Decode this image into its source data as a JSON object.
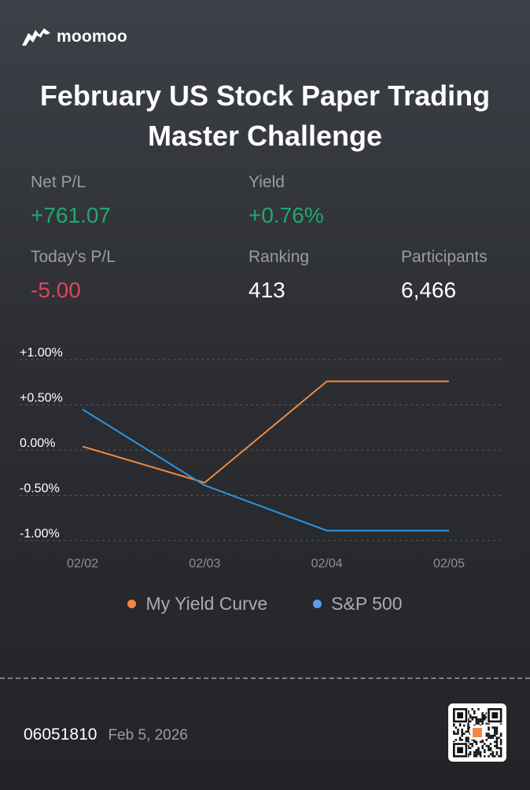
{
  "brand": {
    "name": "moomoo"
  },
  "title": {
    "line1": "February US Stock Paper Trading",
    "line2": "Master Challenge"
  },
  "stats": {
    "net_pl": {
      "label": "Net P/L",
      "value": "+761.07"
    },
    "yield": {
      "label": "Yield",
      "value": "+0.76%"
    },
    "todays_pl": {
      "label": "Today's P/L",
      "value": "-5.00"
    },
    "ranking": {
      "label": "Ranking",
      "value": "413"
    },
    "participants": {
      "label": "Participants",
      "value": "6,466"
    }
  },
  "colors": {
    "positive": "#21a86e",
    "negative": "#e0455b",
    "my_yield": "#f0883e",
    "sp500": "#2e93de"
  },
  "chart_data": {
    "type": "line",
    "title": "",
    "xlabel": "",
    "ylabel": "",
    "x": [
      "02/02",
      "02/03",
      "02/04",
      "02/05"
    ],
    "y_ticks": [
      1.0,
      0.5,
      0.0,
      -0.5,
      -1.0
    ],
    "y_tick_labels": [
      "+1.00%",
      "+0.50%",
      "0.00%",
      "-0.50%",
      "-1.00%"
    ],
    "ylim": [
      -1.0,
      1.0
    ],
    "grid": true,
    "legend_position": "bottom",
    "series": [
      {
        "name": "My Yield Curve",
        "values": [
          0.04,
          -0.36,
          0.76,
          0.76
        ]
      },
      {
        "name": "S&P 500",
        "values": [
          0.45,
          -0.39,
          -0.89,
          -0.89
        ]
      }
    ]
  },
  "footer": {
    "account": "06051810",
    "date": "Feb 5, 2026"
  }
}
